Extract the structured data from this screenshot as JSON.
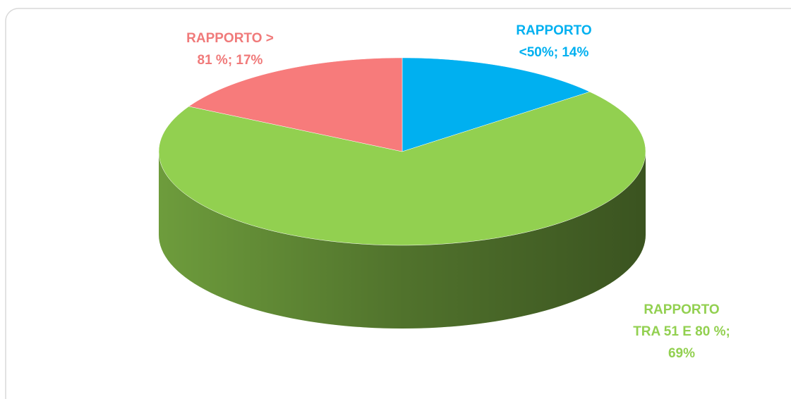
{
  "chart_data": {
    "type": "pie3d",
    "categories": [
      null,
      null,
      null
    ],
    "values": [
      14,
      69,
      17
    ],
    "value_labels": [
      [
        "RAPPORTO",
        "<50%; 14%"
      ],
      [
        "RAPPORTO",
        "TRA 51 E 80 %;",
        "69%"
      ],
      [
        "RAPPORTO  >",
        "81 %; 17%"
      ]
    ],
    "colors": [
      "#00b0f0",
      "#92d050",
      "#f77b7b"
    ],
    "label_colors": [
      "#00b0f0",
      "#92d050",
      "#f07a7a"
    ],
    "start_angle": 0,
    "direction": "clockwise"
  }
}
